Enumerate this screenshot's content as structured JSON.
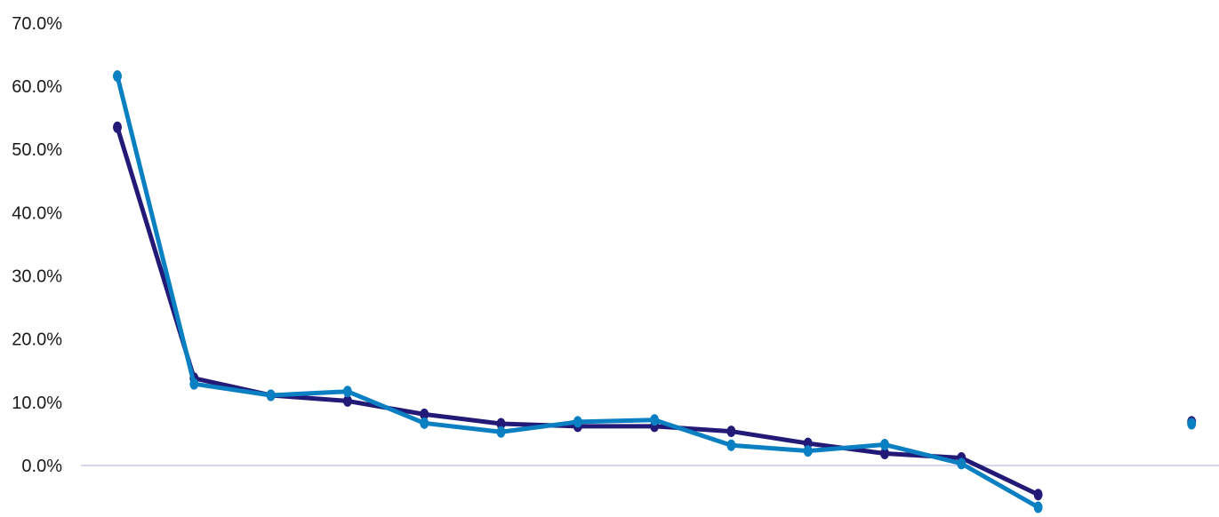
{
  "chart_data": {
    "type": "line",
    "x": [
      1,
      2,
      3,
      4,
      5,
      6,
      7,
      8,
      9,
      10,
      11,
      12,
      13,
      14,
      15
    ],
    "ylim": [
      -7,
      70
    ],
    "yticks": [
      "70.0%",
      "60.0%",
      "50.0%",
      "40.0%",
      "30.0%",
      "20.0%",
      "10.0%",
      "0.0%"
    ],
    "ytick_values": [
      70,
      60,
      50,
      40,
      30,
      20,
      10,
      0
    ],
    "grid": false,
    "zero_line_color": "#c9c9e8",
    "series": [
      {
        "color": "#231a78",
        "values": [
          53.5,
          13.8,
          11.1,
          10.2,
          8.1,
          6.6,
          6.2,
          6.2,
          5.4,
          3.5,
          1.9,
          1.2,
          -4.6,
          null,
          6.9
        ]
      },
      {
        "color": "#0a7fc2",
        "values": [
          61.6,
          12.9,
          11.1,
          11.7,
          6.7,
          5.3,
          6.9,
          7.2,
          3.2,
          2.3,
          3.3,
          0.3,
          -6.6,
          null,
          6.6
        ]
      }
    ]
  }
}
